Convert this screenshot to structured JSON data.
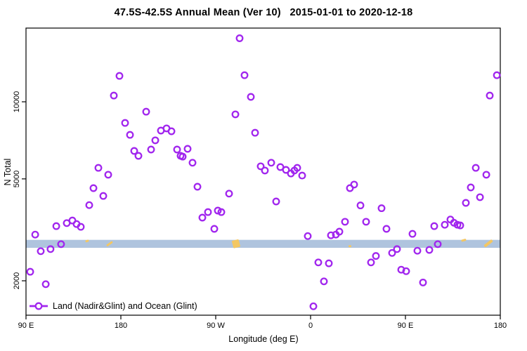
{
  "title": "47.5S-42.5S Annual Mean (Ver 10)   2015-01-01 to 2020-12-18",
  "axes": {
    "x": {
      "label": "Longitude (deg E)",
      "tick_labels": [
        "90 E",
        "180",
        "90 W",
        "0",
        "90 E",
        "180"
      ],
      "tick_lons": [
        90,
        180,
        270,
        360,
        450,
        540
      ]
    },
    "y": {
      "label": "N Total",
      "tick_values": [
        2000,
        5000,
        10000
      ],
      "tick_labels": [
        "2000",
        "5000",
        "10000"
      ],
      "scale": "log"
    }
  },
  "legend": {
    "label": "Land (Nadir&Glint) and Ocean (Glint)",
    "marker": "open-circle-on-line"
  },
  "colors": {
    "point": "#A126EE",
    "band": "#AFC4DE",
    "yellow_mark": "#F3C763",
    "axis": "#000000"
  },
  "band": {
    "n_low": 2690,
    "n_high": 2890
  },
  "yellow_marks": [
    {
      "lon": 148.0,
      "n": 2860,
      "w": 5,
      "h": 3,
      "angle": -20
    },
    {
      "lon": 169.3,
      "n": 2790,
      "w": 10,
      "h": 3,
      "angle": -35
    },
    {
      "lon": 289.3,
      "n": 2790,
      "w": 10,
      "h": 11,
      "angle": -15
    },
    {
      "lon": 397.3,
      "n": 2730,
      "w": 4,
      "h": 3,
      "angle": 0
    },
    {
      "lon": 505.3,
      "n": 2880,
      "w": 7,
      "h": 3,
      "angle": -15
    },
    {
      "lon": 528.7,
      "n": 2800,
      "w": 14,
      "h": 4,
      "angle": -38
    }
  ],
  "chart_data": {
    "type": "scatter",
    "title": "47.5S-42.5S Annual Mean (Ver 10)   2015-01-01 to 2020-12-18",
    "xlabel": "Longitude (deg E)",
    "ylabel": "N Total",
    "x_axis_note": "longitude increasing eastward from 90E; ticks 90E,180,90W,0,90E,180 stored as 90..540 deg",
    "xlim": [
      90,
      540
    ],
    "ylim": [
      1470,
      19400
    ],
    "yscale": "log",
    "grid": false,
    "legend_position": "bottom-left-inside",
    "series_name": "Land (Nadir&Glint) and Ocean (Glint)",
    "points": [
      [
        94,
        2170
      ],
      [
        98.7,
        3030
      ],
      [
        104,
        2610
      ],
      [
        108.7,
        1940
      ],
      [
        113.3,
        2660
      ],
      [
        118.7,
        3270
      ],
      [
        123.3,
        2780
      ],
      [
        128.7,
        3360
      ],
      [
        134,
        3440
      ],
      [
        138,
        3330
      ],
      [
        142,
        3250
      ],
      [
        150,
        3950
      ],
      [
        154,
        4600
      ],
      [
        158.7,
        5520
      ],
      [
        163.3,
        4290
      ],
      [
        168,
        5190
      ],
      [
        173.3,
        10580
      ],
      [
        178.7,
        12620
      ],
      [
        184,
        8270
      ],
      [
        188.7,
        7430
      ],
      [
        192.7,
        6430
      ],
      [
        196.7,
        6150
      ],
      [
        204,
        9150
      ],
      [
        208.7,
        6510
      ],
      [
        212.7,
        7070
      ],
      [
        218,
        7720
      ],
      [
        223.3,
        7870
      ],
      [
        228,
        7670
      ],
      [
        233.3,
        6510
      ],
      [
        236.7,
        6150
      ],
      [
        238.7,
        6110
      ],
      [
        243.3,
        6550
      ],
      [
        248,
        5780
      ],
      [
        252.7,
        4660
      ],
      [
        257.3,
        3530
      ],
      [
        262.7,
        3710
      ],
      [
        268.7,
        3190
      ],
      [
        272,
        3760
      ],
      [
        275.3,
        3710
      ],
      [
        282.7,
        4380
      ],
      [
        288.7,
        8930
      ],
      [
        292.7,
        17700
      ],
      [
        297.3,
        12700
      ],
      [
        303.3,
        10450
      ],
      [
        307.3,
        7570
      ],
      [
        312.7,
        5600
      ],
      [
        316.7,
        5390
      ],
      [
        322.7,
        5780
      ],
      [
        327.3,
        4080
      ],
      [
        331.3,
        5560
      ],
      [
        336.7,
        5420
      ],
      [
        341.3,
        5250
      ],
      [
        344.7,
        5390
      ],
      [
        347.3,
        5520
      ],
      [
        352,
        5150
      ],
      [
        357.3,
        2990
      ],
      [
        362.7,
        1590
      ],
      [
        367.3,
        2360
      ],
      [
        372.7,
        1990
      ],
      [
        377.3,
        2340
      ],
      [
        379.3,
        3010
      ],
      [
        384,
        3030
      ],
      [
        387.3,
        3110
      ],
      [
        392.7,
        3400
      ],
      [
        397.3,
        4600
      ],
      [
        401.3,
        4750
      ],
      [
        407.3,
        3940
      ],
      [
        412.7,
        3400
      ],
      [
        417.3,
        2360
      ],
      [
        422,
        2500
      ],
      [
        427.3,
        3840
      ],
      [
        432,
        3190
      ],
      [
        437.3,
        2570
      ],
      [
        442,
        2660
      ],
      [
        446,
        2210
      ],
      [
        450.7,
        2180
      ],
      [
        456.7,
        3050
      ],
      [
        461.3,
        2620
      ],
      [
        466.7,
        1970
      ],
      [
        472.7,
        2640
      ],
      [
        477.3,
        3270
      ],
      [
        480.7,
        2780
      ],
      [
        487.3,
        3310
      ],
      [
        492.7,
        3470
      ],
      [
        496,
        3370
      ],
      [
        499.3,
        3310
      ],
      [
        502,
        3290
      ],
      [
        507.3,
        4030
      ],
      [
        512,
        4630
      ],
      [
        516.7,
        5520
      ],
      [
        520.7,
        4240
      ],
      [
        526.7,
        5190
      ],
      [
        530,
        10580
      ],
      [
        536.7,
        12700
      ]
    ]
  }
}
